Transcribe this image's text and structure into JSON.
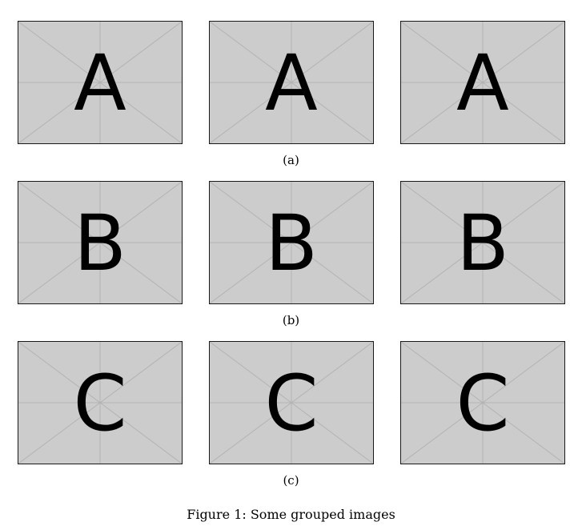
{
  "figure": {
    "caption": "Figure 1: Some grouped images",
    "subfigures": [
      {
        "label": "(a)",
        "images": [
          "A",
          "A",
          "A"
        ]
      },
      {
        "label": "(b)",
        "images": [
          "B",
          "B",
          "B"
        ]
      },
      {
        "label": "(c)",
        "images": [
          "C",
          "C",
          "C"
        ]
      }
    ]
  },
  "colors": {
    "placeholder_fill": "#cccccc",
    "placeholder_lines": "#b3b3b3",
    "border": "#1a1a1a"
  }
}
